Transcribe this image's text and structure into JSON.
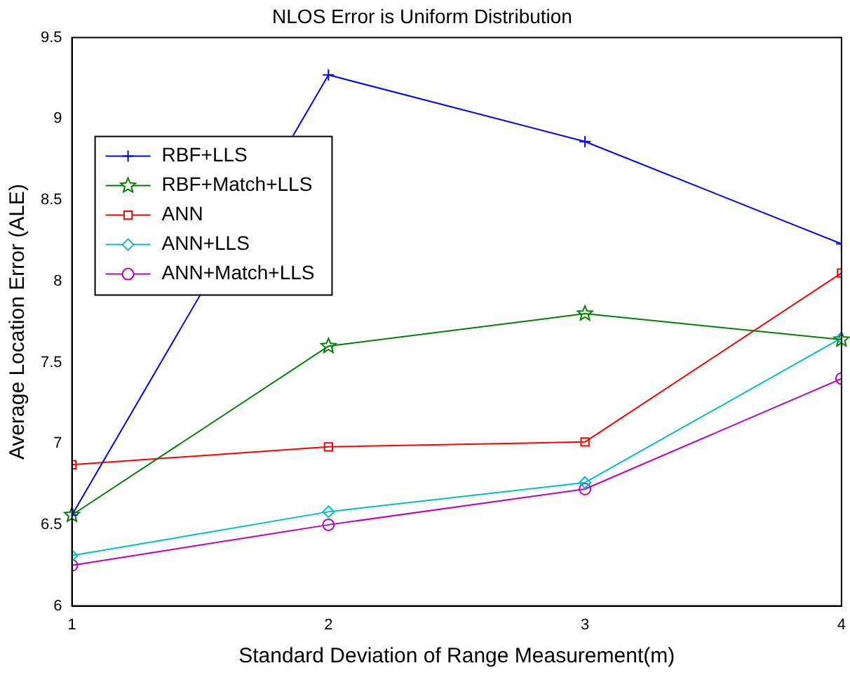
{
  "chart_data": {
    "type": "line",
    "title": "NLOS Error is Uniform Distribution",
    "xlabel": "Standard Deviation of Range Measurement(m)",
    "ylabel": "Average Location Error (ALE)",
    "x": [
      1,
      2,
      3,
      4
    ],
    "xlim": [
      1,
      4
    ],
    "xticks": [
      1,
      2,
      3,
      4
    ],
    "ylim": [
      6,
      9.5
    ],
    "yticks": [
      6,
      6.5,
      7,
      7.5,
      8,
      8.5,
      9,
      9.5
    ],
    "grid": false,
    "legend": "top left",
    "line_style": "solid",
    "series": [
      {
        "name": "RBF+LLS",
        "color": "#0000ff",
        "marker": "cross",
        "values": [
          6.56,
          9.27,
          8.86,
          8.23
        ]
      },
      {
        "name": "RBF+Match+LLS",
        "color": "#008000",
        "marker": "star",
        "values": [
          6.56,
          7.6,
          7.8,
          7.64
        ]
      },
      {
        "name": "ANN",
        "color": "#ff0000",
        "marker": "square",
        "values": [
          6.87,
          6.98,
          7.01,
          8.05
        ]
      },
      {
        "name": "ANN+LLS",
        "color": "#00bfbf",
        "marker": "diamond",
        "values": [
          6.31,
          6.58,
          6.76,
          7.65
        ]
      },
      {
        "name": "ANN+Match+LLS",
        "color": "#bf00bf",
        "marker": "circle",
        "values": [
          6.25,
          6.5,
          6.72,
          7.4
        ]
      }
    ]
  }
}
